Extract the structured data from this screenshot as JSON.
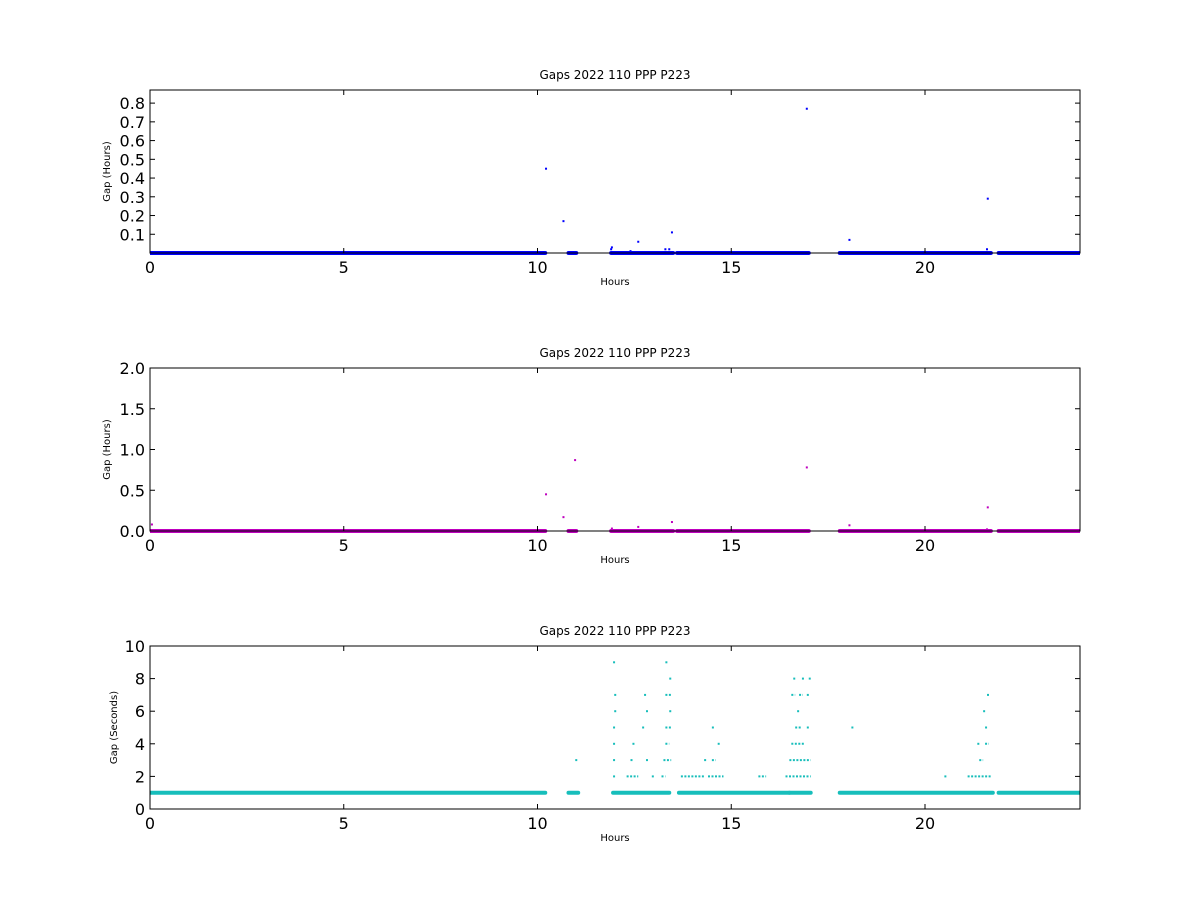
{
  "chart_data": [
    {
      "type": "scatter",
      "title": "Gaps 2022 110 PPP  P223",
      "xlabel": "Hours",
      "ylabel": "Gap (Hours)",
      "xlim": [
        0,
        24
      ],
      "ylim": [
        0,
        0.87
      ],
      "xticks": [
        0,
        5,
        10,
        15,
        20
      ],
      "yticks": [
        0.1,
        0.2,
        0.3,
        0.4,
        0.5,
        0.6,
        0.7,
        0.8
      ],
      "xtick_labels": [
        "0",
        "5",
        "10",
        "15",
        "20"
      ],
      "ytick_labels": [
        "0.1",
        "0.2",
        "0.3",
        "0.4",
        "0.5",
        "0.6",
        "0.7",
        "0.8"
      ],
      "color": "#0000ff",
      "baseline_value": 0.0003,
      "baseline_segments": [
        [
          0.0,
          10.2
        ],
        [
          10.8,
          11.0
        ],
        [
          11.9,
          13.5
        ],
        [
          13.6,
          16.5
        ],
        [
          16.5,
          17.0
        ],
        [
          17.8,
          21.7
        ],
        [
          21.9,
          24.0
        ]
      ],
      "points": [
        {
          "x": 10.22,
          "y": 0.45
        },
        {
          "x": 10.67,
          "y": 0.17
        },
        {
          "x": 11.9,
          "y": 0.02
        },
        {
          "x": 11.92,
          "y": 0.03
        },
        {
          "x": 12.6,
          "y": 0.06
        },
        {
          "x": 12.4,
          "y": 0.01
        },
        {
          "x": 13.3,
          "y": 0.02
        },
        {
          "x": 13.4,
          "y": 0.02
        },
        {
          "x": 13.47,
          "y": 0.11
        },
        {
          "x": 16.95,
          "y": 0.77
        },
        {
          "x": 18.05,
          "y": 0.07
        },
        {
          "x": 21.6,
          "y": 0.02
        },
        {
          "x": 21.62,
          "y": 0.29
        }
      ]
    },
    {
      "type": "scatter",
      "title": "Gaps 2022 110 PPP  P223",
      "xlabel": "Hours",
      "ylabel": "Gap (Hours)",
      "xlim": [
        0,
        24
      ],
      "ylim": [
        0,
        2.0
      ],
      "xticks": [
        0,
        5,
        10,
        15,
        20
      ],
      "yticks": [
        0.0,
        0.5,
        1.0,
        1.5,
        2.0
      ],
      "xtick_labels": [
        "0",
        "5",
        "10",
        "15",
        "20"
      ],
      "ytick_labels": [
        "0.0",
        "0.5",
        "1.0",
        "1.5",
        "2.0"
      ],
      "color": "#bf00bf",
      "baseline_value": 0.0003,
      "baseline_segments": [
        [
          0.0,
          10.2
        ],
        [
          10.8,
          11.0
        ],
        [
          11.9,
          13.5
        ],
        [
          13.6,
          16.5
        ],
        [
          16.5,
          17.0
        ],
        [
          17.8,
          21.7
        ],
        [
          21.9,
          24.0
        ]
      ],
      "points": [
        {
          "x": 0.05,
          "y": 0.08
        },
        {
          "x": 10.22,
          "y": 0.45
        },
        {
          "x": 10.67,
          "y": 0.17
        },
        {
          "x": 10.97,
          "y": 0.87
        },
        {
          "x": 11.92,
          "y": 0.03
        },
        {
          "x": 12.6,
          "y": 0.05
        },
        {
          "x": 13.47,
          "y": 0.11
        },
        {
          "x": 16.95,
          "y": 0.78
        },
        {
          "x": 18.05,
          "y": 0.07
        },
        {
          "x": 21.62,
          "y": 0.29
        },
        {
          "x": 21.6,
          "y": 0.02
        }
      ]
    },
    {
      "type": "scatter",
      "title": "Gaps 2022 110 PPP  P223",
      "xlabel": "Hours",
      "ylabel": "Gap (Seconds)",
      "xlim": [
        0,
        24
      ],
      "ylim": [
        0,
        10
      ],
      "xticks": [
        0,
        5,
        10,
        15,
        20
      ],
      "yticks": [
        0,
        2,
        4,
        6,
        8,
        10
      ],
      "xtick_labels": [
        "0",
        "5",
        "10",
        "15",
        "20"
      ],
      "ytick_labels": [
        "0",
        "2",
        "4",
        "6",
        "8",
        "10"
      ],
      "color": "#17bebb",
      "baseline_value": 1,
      "baseline_segments": [
        [
          0.0,
          10.2
        ],
        [
          10.8,
          11.05
        ],
        [
          11.95,
          13.4
        ],
        [
          13.65,
          16.5
        ],
        [
          16.5,
          17.05
        ],
        [
          17.8,
          21.75
        ],
        [
          21.9,
          24.0
        ]
      ],
      "level_runs": [
        {
          "y": 2,
          "segments": [
            [
              11.95,
              12.0
            ],
            [
              12.3,
              12.6
            ],
            [
              12.95,
              13.0
            ],
            [
              13.2,
              13.3
            ],
            [
              13.7,
              14.3
            ],
            [
              14.4,
              14.8
            ],
            [
              15.7,
              15.9
            ],
            [
              16.4,
              17.05
            ],
            [
              20.5,
              20.52
            ],
            [
              21.1,
              21.7
            ]
          ]
        },
        {
          "y": 3,
          "segments": [
            [
              11.95,
              12.0
            ],
            [
              12.4,
              12.45
            ],
            [
              12.8,
              12.85
            ],
            [
              13.25,
              13.45
            ],
            [
              14.3,
              14.35
            ],
            [
              14.5,
              14.6
            ],
            [
              16.5,
              17.05
            ],
            [
              21.4,
              21.5
            ]
          ]
        },
        {
          "y": 4,
          "segments": [
            [
              11.95,
              12.0
            ],
            [
              12.45,
              12.5
            ],
            [
              13.3,
              13.4
            ],
            [
              14.65,
              14.7
            ],
            [
              16.55,
              16.9
            ],
            [
              21.35,
              21.4
            ],
            [
              21.55,
              21.65
            ]
          ]
        },
        {
          "y": 5,
          "segments": [
            [
              11.95,
              12.0
            ],
            [
              12.7,
              12.75
            ],
            [
              13.3,
              13.45
            ],
            [
              14.5,
              14.55
            ],
            [
              16.65,
              16.8
            ],
            [
              16.95,
              17.0
            ],
            [
              18.1,
              18.15
            ],
            [
              21.55,
              21.6
            ]
          ]
        },
        {
          "y": 6,
          "segments": [
            [
              11.98,
              12.0
            ],
            [
              12.8,
              12.85
            ],
            [
              13.4,
              13.45
            ],
            [
              16.7,
              16.75
            ],
            [
              21.5,
              21.55
            ]
          ]
        },
        {
          "y": 7,
          "segments": [
            [
              11.98,
              12.0
            ],
            [
              12.75,
              12.8
            ],
            [
              13.3,
              13.45
            ],
            [
              16.55,
              16.65
            ],
            [
              16.75,
              16.85
            ],
            [
              16.95,
              17.0
            ],
            [
              21.6,
              21.62
            ]
          ]
        },
        {
          "y": 8,
          "segments": [
            [
              13.4,
              13.42
            ],
            [
              16.6,
              16.62
            ],
            [
              17.0,
              17.02
            ]
          ]
        },
        {
          "y": 9,
          "segments": [
            [
              11.95,
              11.97
            ],
            [
              13.3,
              13.38
            ]
          ]
        }
      ],
      "points": [
        {
          "x": 0.02,
          "y": 1
        },
        {
          "x": 11.0,
          "y": 3
        },
        {
          "x": 16.85,
          "y": 8
        }
      ]
    }
  ]
}
